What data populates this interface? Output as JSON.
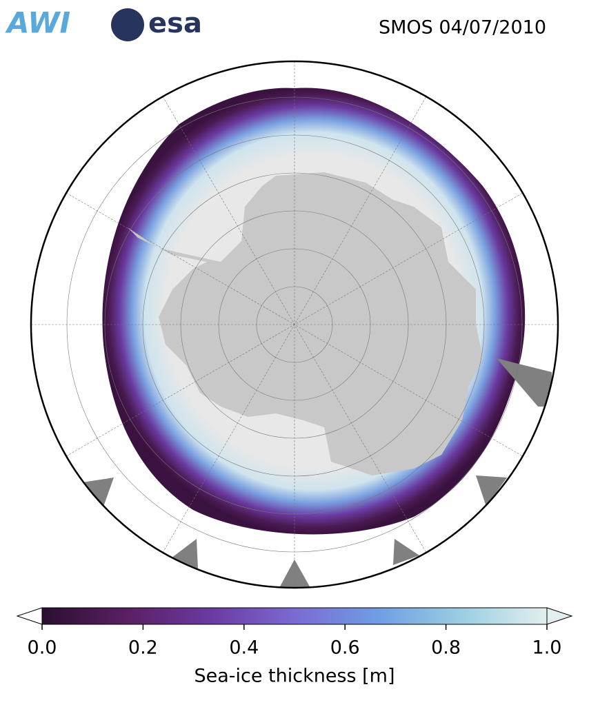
{
  "header": {
    "logos": [
      "AWI",
      "esa"
    ],
    "title": "SMOS 04/07/2010"
  },
  "colorbar": {
    "label": "Sea-ice thickness [m]",
    "lim": [
      0,
      1
    ],
    "ticks": [
      {
        "value": 0,
        "label": "0.0"
      },
      0.2,
      0.4,
      0.6,
      0.8,
      {
        "value": 1,
        "label": "1.0"
      }
    ],
    "colors": [
      "#2a0f30",
      "#5a1f63",
      "#6a3aa0",
      "#7b6ad2",
      "#6f9ee3",
      "#9ccfe2",
      "#e3eeee"
    ]
  }
}
